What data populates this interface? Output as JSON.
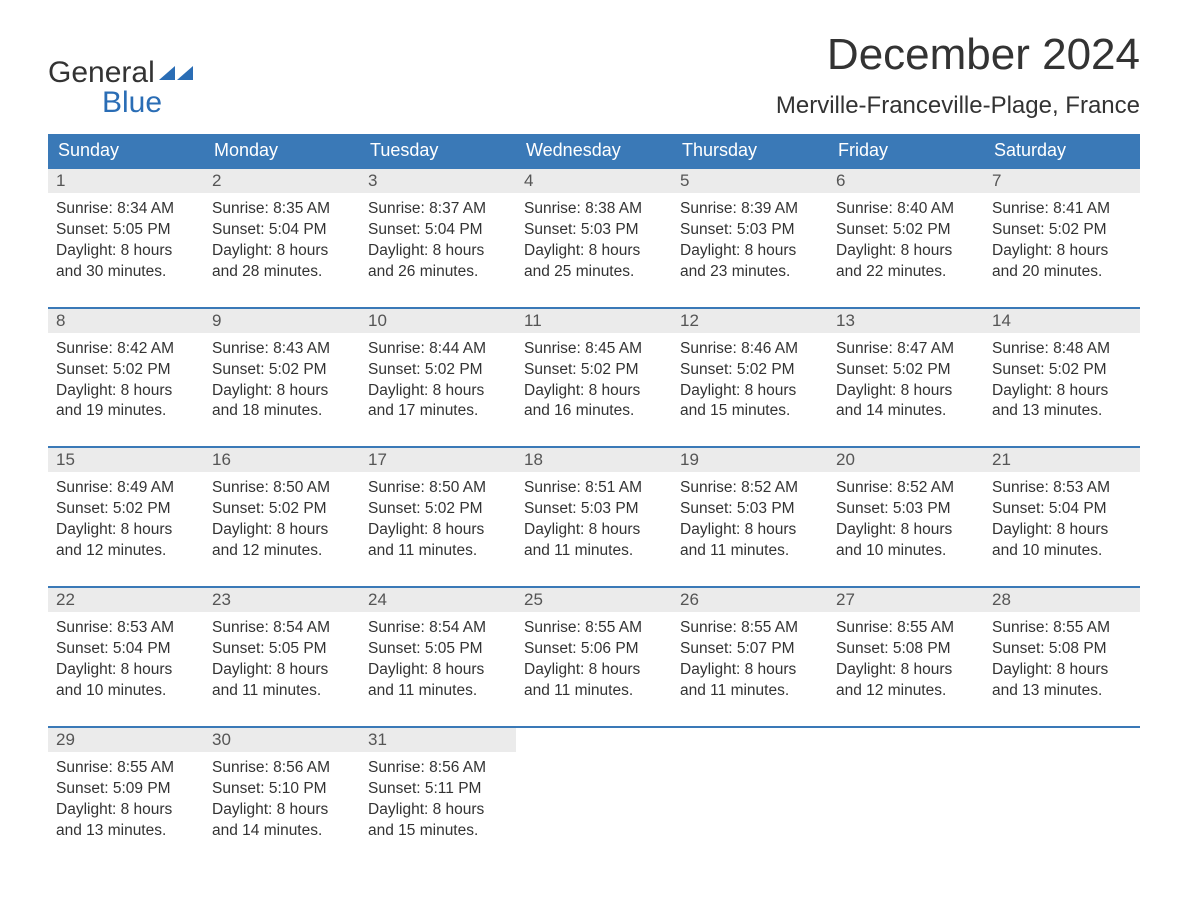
{
  "logo": {
    "top": "General",
    "bottom": "Blue",
    "top_color": "#333333",
    "bottom_color": "#2a6db5"
  },
  "title": {
    "month": "December 2024",
    "location": "Merville-Franceville-Plage, France"
  },
  "colors": {
    "header_bg": "#3a79b7",
    "header_text": "#ffffff",
    "daynum_bg": "#ebebeb",
    "week_border": "#3a79b7",
    "body_text": "#333333",
    "page_bg": "#ffffff"
  },
  "day_names": [
    "Sunday",
    "Monday",
    "Tuesday",
    "Wednesday",
    "Thursday",
    "Friday",
    "Saturday"
  ],
  "weeks": [
    [
      {
        "n": "1",
        "sunrise": "Sunrise: 8:34 AM",
        "sunset": "Sunset: 5:05 PM",
        "d1": "Daylight: 8 hours",
        "d2": "and 30 minutes."
      },
      {
        "n": "2",
        "sunrise": "Sunrise: 8:35 AM",
        "sunset": "Sunset: 5:04 PM",
        "d1": "Daylight: 8 hours",
        "d2": "and 28 minutes."
      },
      {
        "n": "3",
        "sunrise": "Sunrise: 8:37 AM",
        "sunset": "Sunset: 5:04 PM",
        "d1": "Daylight: 8 hours",
        "d2": "and 26 minutes."
      },
      {
        "n": "4",
        "sunrise": "Sunrise: 8:38 AM",
        "sunset": "Sunset: 5:03 PM",
        "d1": "Daylight: 8 hours",
        "d2": "and 25 minutes."
      },
      {
        "n": "5",
        "sunrise": "Sunrise: 8:39 AM",
        "sunset": "Sunset: 5:03 PM",
        "d1": "Daylight: 8 hours",
        "d2": "and 23 minutes."
      },
      {
        "n": "6",
        "sunrise": "Sunrise: 8:40 AM",
        "sunset": "Sunset: 5:02 PM",
        "d1": "Daylight: 8 hours",
        "d2": "and 22 minutes."
      },
      {
        "n": "7",
        "sunrise": "Sunrise: 8:41 AM",
        "sunset": "Sunset: 5:02 PM",
        "d1": "Daylight: 8 hours",
        "d2": "and 20 minutes."
      }
    ],
    [
      {
        "n": "8",
        "sunrise": "Sunrise: 8:42 AM",
        "sunset": "Sunset: 5:02 PM",
        "d1": "Daylight: 8 hours",
        "d2": "and 19 minutes."
      },
      {
        "n": "9",
        "sunrise": "Sunrise: 8:43 AM",
        "sunset": "Sunset: 5:02 PM",
        "d1": "Daylight: 8 hours",
        "d2": "and 18 minutes."
      },
      {
        "n": "10",
        "sunrise": "Sunrise: 8:44 AM",
        "sunset": "Sunset: 5:02 PM",
        "d1": "Daylight: 8 hours",
        "d2": "and 17 minutes."
      },
      {
        "n": "11",
        "sunrise": "Sunrise: 8:45 AM",
        "sunset": "Sunset: 5:02 PM",
        "d1": "Daylight: 8 hours",
        "d2": "and 16 minutes."
      },
      {
        "n": "12",
        "sunrise": "Sunrise: 8:46 AM",
        "sunset": "Sunset: 5:02 PM",
        "d1": "Daylight: 8 hours",
        "d2": "and 15 minutes."
      },
      {
        "n": "13",
        "sunrise": "Sunrise: 8:47 AM",
        "sunset": "Sunset: 5:02 PM",
        "d1": "Daylight: 8 hours",
        "d2": "and 14 minutes."
      },
      {
        "n": "14",
        "sunrise": "Sunrise: 8:48 AM",
        "sunset": "Sunset: 5:02 PM",
        "d1": "Daylight: 8 hours",
        "d2": "and 13 minutes."
      }
    ],
    [
      {
        "n": "15",
        "sunrise": "Sunrise: 8:49 AM",
        "sunset": "Sunset: 5:02 PM",
        "d1": "Daylight: 8 hours",
        "d2": "and 12 minutes."
      },
      {
        "n": "16",
        "sunrise": "Sunrise: 8:50 AM",
        "sunset": "Sunset: 5:02 PM",
        "d1": "Daylight: 8 hours",
        "d2": "and 12 minutes."
      },
      {
        "n": "17",
        "sunrise": "Sunrise: 8:50 AM",
        "sunset": "Sunset: 5:02 PM",
        "d1": "Daylight: 8 hours",
        "d2": "and 11 minutes."
      },
      {
        "n": "18",
        "sunrise": "Sunrise: 8:51 AM",
        "sunset": "Sunset: 5:03 PM",
        "d1": "Daylight: 8 hours",
        "d2": "and 11 minutes."
      },
      {
        "n": "19",
        "sunrise": "Sunrise: 8:52 AM",
        "sunset": "Sunset: 5:03 PM",
        "d1": "Daylight: 8 hours",
        "d2": "and 11 minutes."
      },
      {
        "n": "20",
        "sunrise": "Sunrise: 8:52 AM",
        "sunset": "Sunset: 5:03 PM",
        "d1": "Daylight: 8 hours",
        "d2": "and 10 minutes."
      },
      {
        "n": "21",
        "sunrise": "Sunrise: 8:53 AM",
        "sunset": "Sunset: 5:04 PM",
        "d1": "Daylight: 8 hours",
        "d2": "and 10 minutes."
      }
    ],
    [
      {
        "n": "22",
        "sunrise": "Sunrise: 8:53 AM",
        "sunset": "Sunset: 5:04 PM",
        "d1": "Daylight: 8 hours",
        "d2": "and 10 minutes."
      },
      {
        "n": "23",
        "sunrise": "Sunrise: 8:54 AM",
        "sunset": "Sunset: 5:05 PM",
        "d1": "Daylight: 8 hours",
        "d2": "and 11 minutes."
      },
      {
        "n": "24",
        "sunrise": "Sunrise: 8:54 AM",
        "sunset": "Sunset: 5:05 PM",
        "d1": "Daylight: 8 hours",
        "d2": "and 11 minutes."
      },
      {
        "n": "25",
        "sunrise": "Sunrise: 8:55 AM",
        "sunset": "Sunset: 5:06 PM",
        "d1": "Daylight: 8 hours",
        "d2": "and 11 minutes."
      },
      {
        "n": "26",
        "sunrise": "Sunrise: 8:55 AM",
        "sunset": "Sunset: 5:07 PM",
        "d1": "Daylight: 8 hours",
        "d2": "and 11 minutes."
      },
      {
        "n": "27",
        "sunrise": "Sunrise: 8:55 AM",
        "sunset": "Sunset: 5:08 PM",
        "d1": "Daylight: 8 hours",
        "d2": "and 12 minutes."
      },
      {
        "n": "28",
        "sunrise": "Sunrise: 8:55 AM",
        "sunset": "Sunset: 5:08 PM",
        "d1": "Daylight: 8 hours",
        "d2": "and 13 minutes."
      }
    ],
    [
      {
        "n": "29",
        "sunrise": "Sunrise: 8:55 AM",
        "sunset": "Sunset: 5:09 PM",
        "d1": "Daylight: 8 hours",
        "d2": "and 13 minutes."
      },
      {
        "n": "30",
        "sunrise": "Sunrise: 8:56 AM",
        "sunset": "Sunset: 5:10 PM",
        "d1": "Daylight: 8 hours",
        "d2": "and 14 minutes."
      },
      {
        "n": "31",
        "sunrise": "Sunrise: 8:56 AM",
        "sunset": "Sunset: 5:11 PM",
        "d1": "Daylight: 8 hours",
        "d2": "and 15 minutes."
      },
      null,
      null,
      null,
      null
    ]
  ]
}
